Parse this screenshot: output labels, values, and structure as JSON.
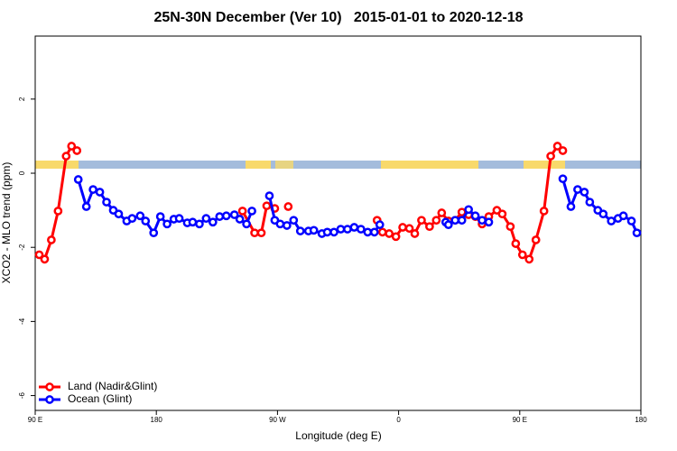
{
  "chart_data": {
    "type": "line",
    "title": "25N-30N December (Ver 10)   2015-01-01 to 2020-12-18",
    "xlabel": "Longitude (deg E)",
    "ylabel": "XCO2 - MLO trend (ppm)",
    "xlim": [
      90,
      540
    ],
    "ylim": [
      -6.4,
      3.7
    ],
    "xticks": [
      {
        "value": 90,
        "label": "90 E"
      },
      {
        "value": 180,
        "label": "180"
      },
      {
        "value": 270,
        "label": "90 W"
      },
      {
        "value": 360,
        "label": "0"
      },
      {
        "value": 450,
        "label": "90 E"
      },
      {
        "value": 540,
        "label": "180"
      }
    ],
    "yticks": [
      2,
      0,
      -2,
      -4,
      -6
    ],
    "grid": false,
    "legend": "bottomleft",
    "series": [
      {
        "name": "Land (Nadir&Glint)",
        "color": "#ff0000",
        "x": [
          93,
          97,
          102,
          107,
          113,
          117,
          121,
          null,
          244,
          253,
          258,
          262,
          268,
          null,
          278,
          null,
          344,
          348,
          353,
          358,
          363,
          368,
          372,
          377,
          383,
          388,
          392,
          397,
          402,
          407,
          412,
          417,
          422,
          427,
          433,
          437,
          443,
          447,
          452,
          457,
          462,
          468,
          473,
          478,
          482
        ],
        "values": [
          -2.2,
          -2.32,
          -1.8,
          -1.02,
          0.46,
          0.73,
          0.61,
          null,
          -1.02,
          -1.61,
          -1.61,
          -0.88,
          -0.95,
          null,
          -0.9,
          null,
          -1.27,
          -1.59,
          -1.63,
          -1.71,
          -1.46,
          -1.49,
          -1.63,
          -1.27,
          -1.44,
          -1.27,
          -1.07,
          -1.29,
          -1.27,
          -1.05,
          -1.12,
          -1.17,
          -1.37,
          -1.17,
          -1.0,
          -1.1,
          -1.44,
          -1.9,
          -2.2,
          -2.32,
          -1.8,
          -1.02,
          0.46,
          0.73,
          0.61
        ]
      },
      {
        "name": "Ocean (Glint)",
        "color": "#0000ff",
        "x": [
          122,
          128,
          133,
          138,
          143,
          148,
          152,
          158,
          162,
          168,
          172,
          178,
          183,
          188,
          193,
          197,
          203,
          207,
          212,
          217,
          222,
          227,
          232,
          238,
          242,
          247,
          251,
          null,
          264,
          268,
          272,
          277,
          282,
          287,
          293,
          297,
          303,
          307,
          312,
          317,
          322,
          327,
          332,
          337,
          342,
          346,
          null,
          395,
          397,
          402,
          407,
          412,
          417,
          422,
          427,
          null,
          482,
          488,
          493,
          498,
          502,
          508,
          512,
          518,
          523,
          527,
          533,
          537
        ],
        "values": [
          -0.17,
          -0.9,
          -0.44,
          -0.51,
          -0.78,
          -1.0,
          -1.1,
          -1.29,
          -1.22,
          -1.15,
          -1.29,
          -1.61,
          -1.17,
          -1.37,
          -1.24,
          -1.22,
          -1.34,
          -1.32,
          -1.37,
          -1.22,
          -1.32,
          -1.17,
          -1.15,
          -1.12,
          -1.24,
          -1.37,
          -1.02,
          null,
          -0.61,
          -1.27,
          -1.37,
          -1.41,
          -1.27,
          -1.56,
          -1.56,
          -1.54,
          -1.63,
          -1.59,
          -1.59,
          -1.51,
          -1.51,
          -1.46,
          -1.51,
          -1.59,
          -1.59,
          -1.39,
          null,
          -1.32,
          -1.39,
          -1.27,
          -1.27,
          -0.98,
          -1.15,
          -1.27,
          -1.32,
          null,
          -0.15,
          -0.9,
          -0.44,
          -0.51,
          -0.78,
          -1.0,
          -1.1,
          -1.29,
          -1.22,
          -1.15,
          -1.29,
          -1.61
        ]
      }
    ]
  }
}
